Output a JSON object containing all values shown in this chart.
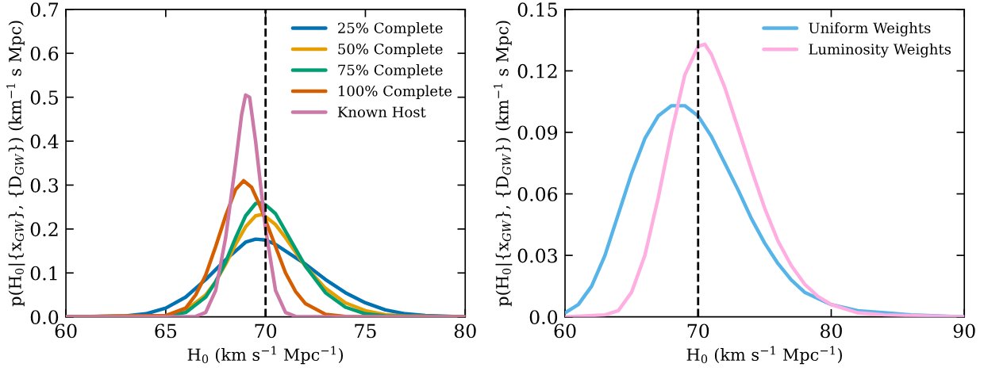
{
  "chart_data": [
    {
      "type": "line",
      "xlabel": "H$_{0}$ (km s$^{−1}$ Mpc$^{−1}$)",
      "ylabel": "p(H$_{0}$|{x$_{GW}$}, {D$_{GW}$}) (km$^{−1}$ s Mpc)",
      "xlim": [
        60,
        80
      ],
      "ylim": [
        0,
        0.7
      ],
      "xticks": [
        60,
        65,
        70,
        75,
        80
      ],
      "yticks": [
        {
          "value": 0,
          "label": "0.0"
        },
        0.1,
        0.2,
        0.3,
        0.4,
        0.5,
        0.6,
        0.7
      ],
      "legend": "top right",
      "grid": false,
      "line_style": "solid",
      "marker": "none",
      "ref_lines": [
        {
          "axis": "x",
          "value": 70,
          "color": "#000000",
          "line_style": "dashed"
        }
      ],
      "series": [
        {
          "name": "25% Complete",
          "color": "#0072b2",
          "x": [
            60,
            63,
            64,
            65,
            66,
            67,
            68,
            68.5,
            69,
            69.5,
            70,
            70.5,
            71,
            72,
            73,
            74,
            75,
            76,
            77,
            78,
            80
          ],
          "values": [
            0,
            0.002,
            0.007,
            0.02,
            0.045,
            0.085,
            0.13,
            0.15,
            0.17,
            0.177,
            0.175,
            0.165,
            0.15,
            0.12,
            0.085,
            0.055,
            0.032,
            0.016,
            0.007,
            0.003,
            0
          ]
        },
        {
          "name": "50% Complete",
          "color": "#e69f00",
          "x": [
            60,
            65,
            66,
            67,
            67.5,
            68,
            68.5,
            69,
            69.5,
            69.8,
            70,
            70.5,
            71,
            72,
            73,
            74,
            75,
            76,
            77,
            80
          ],
          "values": [
            0,
            0.003,
            0.015,
            0.05,
            0.08,
            0.12,
            0.165,
            0.205,
            0.23,
            0.233,
            0.228,
            0.21,
            0.18,
            0.115,
            0.065,
            0.032,
            0.014,
            0.005,
            0.002,
            0
          ]
        },
        {
          "name": "75% Complete",
          "color": "#009e73",
          "x": [
            60,
            65,
            66,
            67,
            67.5,
            68,
            68.5,
            69,
            69.5,
            69.8,
            70,
            70.5,
            71,
            72,
            73,
            74,
            75,
            76,
            80
          ],
          "values": [
            0,
            0.002,
            0.01,
            0.045,
            0.08,
            0.125,
            0.18,
            0.23,
            0.258,
            0.26,
            0.255,
            0.235,
            0.195,
            0.115,
            0.055,
            0.022,
            0.007,
            0.002,
            0
          ]
        },
        {
          "name": "100% Complete",
          "color": "#d55e00",
          "x": [
            60,
            65,
            66,
            66.5,
            67,
            67.5,
            68,
            68.5,
            68.9,
            69.3,
            69.7,
            70,
            70.5,
            71,
            71.5,
            72,
            73,
            74,
            80
          ],
          "values": [
            0,
            0.003,
            0.02,
            0.05,
            0.095,
            0.16,
            0.23,
            0.29,
            0.31,
            0.295,
            0.255,
            0.22,
            0.16,
            0.1,
            0.058,
            0.03,
            0.006,
            0.001,
            0
          ]
        },
        {
          "name": "Known Host",
          "color": "#cc79a7",
          "x": [
            60,
            66.5,
            67,
            67.5,
            68,
            68.5,
            68.8,
            69,
            69.2,
            69.5,
            70,
            70.5,
            71,
            71.5,
            80
          ],
          "values": [
            0,
            0.001,
            0.01,
            0.06,
            0.18,
            0.35,
            0.46,
            0.505,
            0.5,
            0.4,
            0.2,
            0.06,
            0.01,
            0.001,
            0
          ]
        }
      ]
    },
    {
      "type": "line",
      "xlabel": "H$_{0}$ (km s$^{−1}$ Mpc$^{−1}$)",
      "ylabel": "p(H$_{0}$|{x$_{GW}$}, {D$_{GW}$}) (km$^{−1}$ s Mpc)",
      "xlim": [
        60,
        90
      ],
      "ylim": [
        0,
        0.15
      ],
      "xticks": [
        60,
        70,
        80,
        90
      ],
      "yticks": [
        {
          "value": 0,
          "label": "0.0"
        },
        0.03,
        0.06,
        0.09,
        0.12,
        0.15
      ],
      "legend": "top right",
      "grid": false,
      "line_style": "solid",
      "marker": "none",
      "ref_lines": [
        {
          "axis": "x",
          "value": 70,
          "color": "#000000",
          "line_style": "dashed"
        }
      ],
      "series": [
        {
          "name": "Uniform Weights",
          "color": "#56b4e9",
          "x": [
            60,
            61,
            62,
            63,
            64,
            65,
            66,
            67,
            68,
            69,
            70,
            71,
            72,
            73,
            74,
            75,
            76,
            77,
            78,
            79,
            80,
            82,
            84,
            86,
            90
          ],
          "values": [
            0.002,
            0.006,
            0.015,
            0.03,
            0.05,
            0.07,
            0.087,
            0.098,
            0.103,
            0.103,
            0.098,
            0.088,
            0.075,
            0.062,
            0.048,
            0.036,
            0.026,
            0.018,
            0.012,
            0.009,
            0.006,
            0.003,
            0.002,
            0.001,
            0
          ]
        },
        {
          "name": "Luminosity Weights",
          "color": "#ffaee1",
          "x": [
            60,
            63,
            64,
            65,
            66,
            67,
            68,
            69,
            70,
            70.5,
            71,
            72,
            73,
            74,
            75,
            76,
            77,
            78,
            79,
            80,
            82,
            84,
            90
          ],
          "values": [
            0,
            0.001,
            0.003,
            0.012,
            0.03,
            0.058,
            0.09,
            0.118,
            0.132,
            0.133,
            0.128,
            0.112,
            0.092,
            0.072,
            0.053,
            0.037,
            0.025,
            0.016,
            0.01,
            0.006,
            0.002,
            0.001,
            0
          ]
        }
      ]
    }
  ]
}
